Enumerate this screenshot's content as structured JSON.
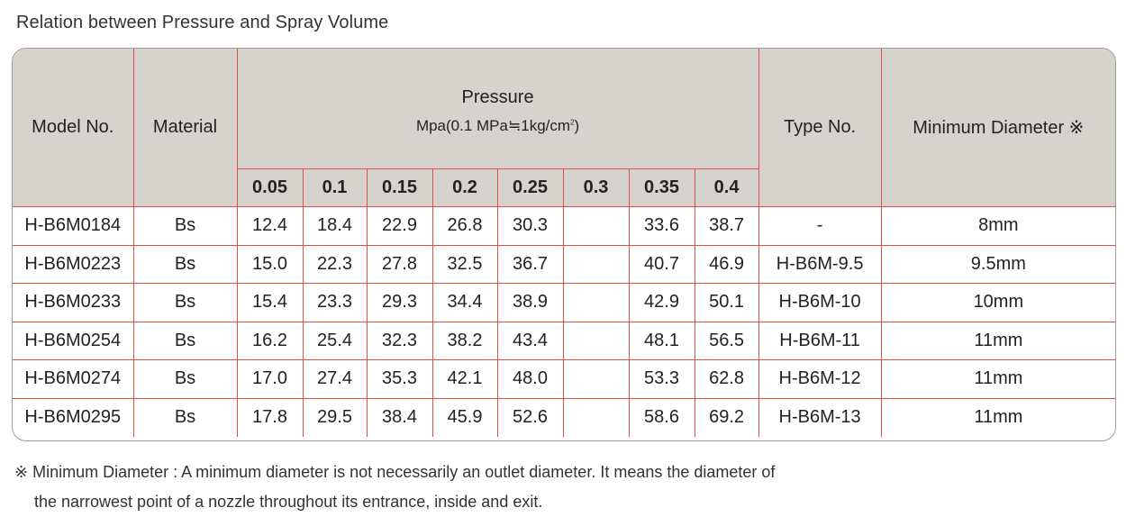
{
  "title": "Relation between Pressure and Spray Volume",
  "table": {
    "headers": {
      "model": "Model No.",
      "material": "Material",
      "pressure": "Pressure",
      "pressure_unit_prefix": "Mpa(0.1 MPa≒1kg/cm",
      "pressure_unit_sup": "2",
      "pressure_unit_suffix": ")",
      "type": "Type No.",
      "min_diameter": "Minimum Diameter ※",
      "pressures": [
        "0.05",
        "0.1",
        "0.15",
        "0.2",
        "0.25",
        "0.3",
        "0.35",
        "0.4"
      ]
    },
    "rows": [
      {
        "model": "H-B6M0184",
        "material": "Bs",
        "values": [
          "12.4",
          "18.4",
          "22.9",
          "26.8",
          "30.3",
          "",
          "33.6",
          "38.7"
        ],
        "type": "-",
        "min_diameter": "8mm"
      },
      {
        "model": "H-B6M0223",
        "material": "Bs",
        "values": [
          "15.0",
          "22.3",
          "27.8",
          "32.5",
          "36.7",
          "",
          "40.7",
          "46.9"
        ],
        "type": "H-B6M-9.5",
        "min_diameter": "9.5mm"
      },
      {
        "model": "H-B6M0233",
        "material": "Bs",
        "values": [
          "15.4",
          "23.3",
          "29.3",
          "34.4",
          "38.9",
          "",
          "42.9",
          "50.1"
        ],
        "type": "H-B6M-10",
        "min_diameter": "10mm"
      },
      {
        "model": "H-B6M0254",
        "material": "Bs",
        "values": [
          "16.2",
          "25.4",
          "32.3",
          "38.2",
          "43.4",
          "",
          "48.1",
          "56.5"
        ],
        "type": "H-B6M-11",
        "min_diameter": "11mm"
      },
      {
        "model": "H-B6M0274",
        "material": "Bs",
        "values": [
          "17.0",
          "27.4",
          "35.3",
          "42.1",
          "48.0",
          "",
          "53.3",
          "62.8"
        ],
        "type": "H-B6M-12",
        "min_diameter": "11mm"
      },
      {
        "model": "H-B6M0295",
        "material": "Bs",
        "values": [
          "17.8",
          "29.5",
          "38.4",
          "45.9",
          "52.6",
          "",
          "58.6",
          "69.2"
        ],
        "type": "H-B6M-13",
        "min_diameter": "11mm"
      }
    ]
  },
  "footnote": {
    "line1": "※ Minimum Diameter : A minimum diameter is not necessarily an outlet diameter. It means the diameter of",
    "line2": "the narrowest point of a nozzle throughout its entrance, inside and exit."
  },
  "colors": {
    "grid_line": "#e0503f",
    "header_bg": "#d6d3cf",
    "outer_border": "#9a9a9a"
  }
}
